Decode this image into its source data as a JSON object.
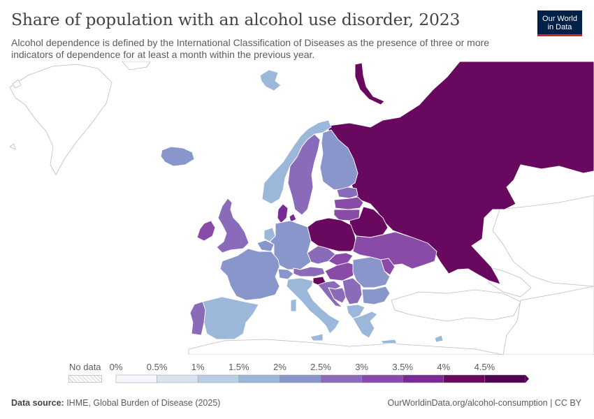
{
  "header": {
    "title": "Share of population with an alcohol use disorder, 2023",
    "subtitle": "Alcohol dependence is defined by the International Classification of Diseases as the presence of three or more indicators of dependence for at least a month within the previous year."
  },
  "logo": {
    "line1": "Our World",
    "line2": "in Data"
  },
  "legend": {
    "no_data_label": "No data",
    "ticks": [
      "0%",
      "0.5%",
      "1%",
      "1.5%",
      "2%",
      "2.5%",
      "3%",
      "3.5%",
      "4%",
      "4.5%"
    ],
    "bins": [
      {
        "from": 0,
        "to": 0.5,
        "color": "#f3f6fa"
      },
      {
        "from": 0.5,
        "to": 1,
        "color": "#d8e3ee"
      },
      {
        "from": 1,
        "to": 1.5,
        "color": "#b9cfe4"
      },
      {
        "from": 1.5,
        "to": 2,
        "color": "#9bb7d9"
      },
      {
        "from": 2,
        "to": 2.5,
        "color": "#8896cc"
      },
      {
        "from": 2.5,
        "to": 3,
        "color": "#8a6bba"
      },
      {
        "from": 3,
        "to": 3.5,
        "color": "#8a4aa8"
      },
      {
        "from": 3.5,
        "to": 4,
        "color": "#7a2a94"
      },
      {
        "from": 4,
        "to": 4.5,
        "color": "#68095f"
      },
      {
        "from": 4.5,
        "to": 5,
        "color": "#4e0450"
      }
    ]
  },
  "map_data": {
    "type": "choropleth",
    "unit": "%",
    "no_data_color": "#ffffff",
    "regions": [
      {
        "id": "russia",
        "value": 4.3
      },
      {
        "id": "belarus",
        "value": 4.0
      },
      {
        "id": "poland",
        "value": 4.2
      },
      {
        "id": "lithuania",
        "value": 3.2
      },
      {
        "id": "latvia",
        "value": 3.4
      },
      {
        "id": "estonia",
        "value": 2.8
      },
      {
        "id": "finland",
        "value": 2.2
      },
      {
        "id": "sweden",
        "value": 2.6
      },
      {
        "id": "norway",
        "value": 1.7
      },
      {
        "id": "denmark",
        "value": 3.6
      },
      {
        "id": "iceland",
        "value": 2.2
      },
      {
        "id": "united-kingdom",
        "value": 2.7
      },
      {
        "id": "ireland",
        "value": 3.4
      },
      {
        "id": "portugal",
        "value": 2.8
      },
      {
        "id": "spain",
        "value": 1.6
      },
      {
        "id": "france",
        "value": 2.1
      },
      {
        "id": "belgium",
        "value": 2.2
      },
      {
        "id": "netherlands",
        "value": 1.9
      },
      {
        "id": "germany",
        "value": 2.2
      },
      {
        "id": "switzerland",
        "value": 2.0
      },
      {
        "id": "italy",
        "value": 1.6
      },
      {
        "id": "austria",
        "value": 2.9
      },
      {
        "id": "czechia",
        "value": 2.9
      },
      {
        "id": "slovakia",
        "value": 3.0
      },
      {
        "id": "hungary",
        "value": 3.1
      },
      {
        "id": "slovenia",
        "value": 4.4
      },
      {
        "id": "croatia",
        "value": 2.9
      },
      {
        "id": "bosnia",
        "value": 2.6
      },
      {
        "id": "serbia",
        "value": 2.7
      },
      {
        "id": "romania",
        "value": 2.1
      },
      {
        "id": "moldova",
        "value": 3.3
      },
      {
        "id": "ukraine",
        "value": 3.1
      },
      {
        "id": "bulgaria",
        "value": 2.2
      },
      {
        "id": "albania-macedonia",
        "value": 1.7
      },
      {
        "id": "greece",
        "value": 1.6
      },
      {
        "id": "cyprus",
        "value": 1.7
      },
      {
        "id": "svalbard",
        "value": 1.6
      },
      {
        "id": "novaya-zemlya",
        "value": 4.3
      }
    ]
  },
  "footer": {
    "source_label": "Data source:",
    "source_text": " IHME, Global Burden of Disease (2025)",
    "url": "OurWorldinData.org/alcohol-consumption | CC BY"
  }
}
